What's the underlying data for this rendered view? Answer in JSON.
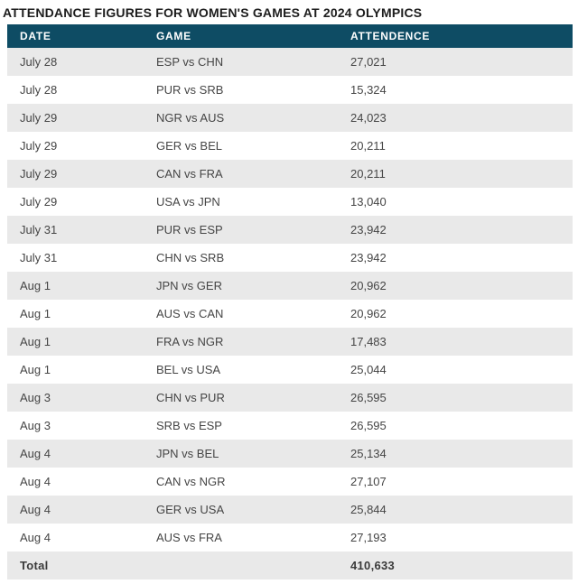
{
  "title": "ATTENDANCE FIGURES FOR WOMEN'S GAMES AT 2024 OLYMPICS",
  "table": {
    "columns": [
      "DATE",
      "GAME",
      "ATTENDENCE"
    ],
    "rows": [
      {
        "date": "July 28",
        "game": "ESP vs CHN",
        "attendance": "27,021"
      },
      {
        "date": "July 28",
        "game": "PUR vs SRB",
        "attendance": "15,324"
      },
      {
        "date": "July 29",
        "game": "NGR vs AUS",
        "attendance": "24,023"
      },
      {
        "date": "July 29",
        "game": "GER vs BEL",
        "attendance": "20,211"
      },
      {
        "date": "July 29",
        "game": "CAN vs FRA",
        "attendance": "20,211"
      },
      {
        "date": "July 29",
        "game": "USA vs JPN",
        "attendance": "13,040"
      },
      {
        "date": "July 31",
        "game": "PUR vs ESP",
        "attendance": "23,942"
      },
      {
        "date": "July 31",
        "game": "CHN vs SRB",
        "attendance": "23,942"
      },
      {
        "date": "Aug 1",
        "game": "JPN vs GER",
        "attendance": "20,962"
      },
      {
        "date": "Aug 1",
        "game": "AUS vs CAN",
        "attendance": "20,962"
      },
      {
        "date": "Aug 1",
        "game": "FRA vs NGR",
        "attendance": "17,483"
      },
      {
        "date": "Aug 1",
        "game": "BEL vs USA",
        "attendance": "25,044"
      },
      {
        "date": "Aug 3",
        "game": "CHN vs PUR",
        "attendance": "26,595"
      },
      {
        "date": "Aug 3",
        "game": "SRB vs ESP",
        "attendance": "26,595"
      },
      {
        "date": "Aug 4",
        "game": "JPN vs BEL",
        "attendance": "25,134"
      },
      {
        "date": "Aug 4",
        "game": "CAN vs NGR",
        "attendance": "27,107"
      },
      {
        "date": "Aug 4",
        "game": "GER vs USA",
        "attendance": "25,844"
      },
      {
        "date": "Aug 4",
        "game": "AUS vs FRA",
        "attendance": "27,193"
      }
    ],
    "total": {
      "label": "Total",
      "value": "410,633"
    }
  },
  "colors": {
    "header_bg": "#0e4c64",
    "header_text": "#ffffff",
    "row_alt_bg": "#e9e9e9",
    "body_text": "#454545"
  },
  "chart_data": {
    "type": "table",
    "title": "ATTENDANCE FIGURES FOR WOMEN'S GAMES AT 2024 OLYMPICS",
    "columns": [
      "DATE",
      "GAME",
      "ATTENDENCE"
    ],
    "dates": [
      "July 28",
      "July 28",
      "July 29",
      "July 29",
      "July 29",
      "July 29",
      "July 31",
      "July 31",
      "Aug 1",
      "Aug 1",
      "Aug 1",
      "Aug 1",
      "Aug 3",
      "Aug 3",
      "Aug 4",
      "Aug 4",
      "Aug 4",
      "Aug 4"
    ],
    "games": [
      "ESP vs CHN",
      "PUR vs SRB",
      "NGR vs AUS",
      "GER vs BEL",
      "CAN vs FRA",
      "USA vs JPN",
      "PUR vs ESP",
      "CHN vs SRB",
      "JPN vs GER",
      "AUS vs CAN",
      "FRA vs NGR",
      "BEL vs USA",
      "CHN vs PUR",
      "SRB vs ESP",
      "JPN vs BEL",
      "CAN vs NGR",
      "GER vs USA",
      "AUS vs FRA"
    ],
    "attendance_values": [
      27021,
      15324,
      24023,
      20211,
      20211,
      13040,
      23942,
      23942,
      20962,
      20962,
      17483,
      25044,
      26595,
      26595,
      25134,
      27107,
      25844,
      27193
    ],
    "total": 410633,
    "layout": "alternating row shading, header dark teal, total row bold"
  }
}
